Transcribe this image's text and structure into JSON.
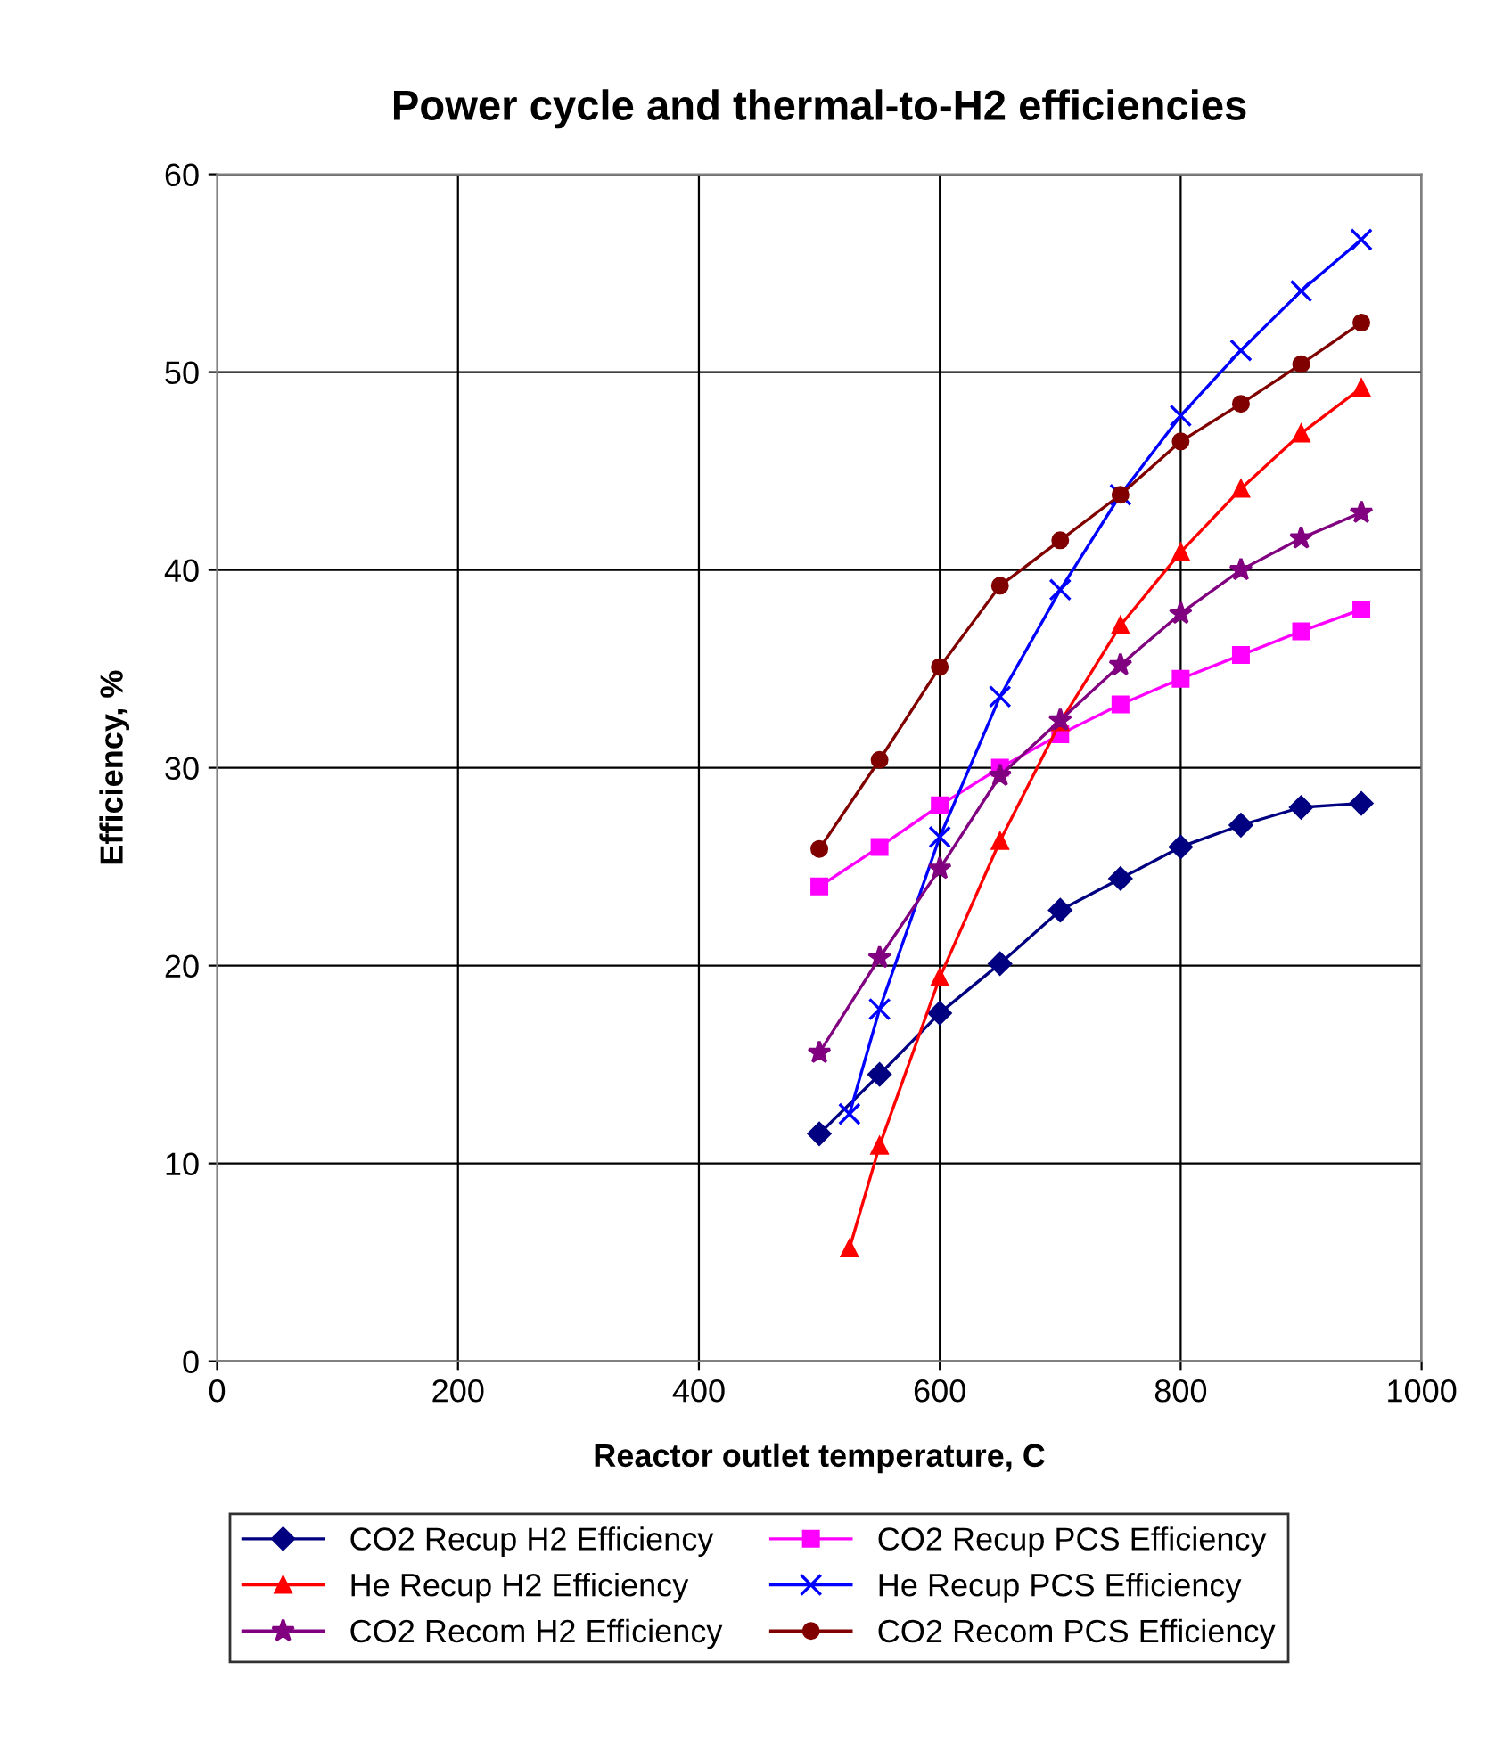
{
  "chart_data": {
    "type": "line",
    "title": "Power cycle and thermal-to-H2 efficiencies",
    "xlabel": "Reactor outlet temperature, C",
    "ylabel": "Efficiency, %",
    "xlim": [
      0,
      1000
    ],
    "xticks": [
      0,
      200,
      400,
      600,
      800,
      1000
    ],
    "ylim": [
      0,
      60
    ],
    "yticks": [
      0,
      10,
      20,
      30,
      40,
      50,
      60
    ],
    "grid": true,
    "legend": "bottom",
    "line_style": "solid",
    "series": [
      {
        "name": "CO2 Recup H2 Efficiency",
        "color": "#000080",
        "marker": "diamond",
        "x": [
          500,
          550,
          600,
          650,
          700,
          750,
          800,
          850,
          900,
          950
        ],
        "values": [
          11.5,
          14.5,
          17.6,
          20.1,
          22.8,
          24.4,
          26.0,
          27.1,
          28.0,
          28.2
        ]
      },
      {
        "name": "CO2 Recup PCS Efficiency",
        "color": "#ff00ff",
        "marker": "square",
        "x": [
          500,
          550,
          600,
          650,
          700,
          750,
          800,
          850,
          900,
          950
        ],
        "values": [
          24.0,
          26.0,
          28.1,
          30.0,
          31.7,
          33.2,
          34.5,
          35.7,
          36.9,
          38.0
        ]
      },
      {
        "name": "He Recup H2 Efficiency",
        "color": "#ff0000",
        "marker": "triangle",
        "x": [
          525,
          550,
          600,
          650,
          700,
          750,
          800,
          850,
          900,
          950
        ],
        "values": [
          5.7,
          10.9,
          19.4,
          26.3,
          32.3,
          37.2,
          40.9,
          44.1,
          46.9,
          49.2
        ]
      },
      {
        "name": "He Recup PCS Efficiency",
        "color": "#0000ff",
        "marker": "cross",
        "x": [
          525,
          550,
          600,
          650,
          700,
          750,
          800,
          850,
          900,
          950
        ],
        "values": [
          12.5,
          17.8,
          26.5,
          33.6,
          39.0,
          43.8,
          47.8,
          51.1,
          54.1,
          56.7
        ]
      },
      {
        "name": "CO2 Recom H2 Efficiency",
        "color": "#800080",
        "marker": "star",
        "x": [
          500,
          550,
          600,
          650,
          700,
          750,
          800,
          850,
          900,
          950
        ],
        "values": [
          15.6,
          20.4,
          24.9,
          29.6,
          32.4,
          35.2,
          37.8,
          40.0,
          41.6,
          42.9
        ]
      },
      {
        "name": "CO2 Recom PCS Efficiency",
        "color": "#800000",
        "marker": "circle",
        "x": [
          500,
          550,
          600,
          650,
          700,
          750,
          800,
          850,
          900,
          950
        ],
        "values": [
          25.9,
          30.4,
          35.1,
          39.2,
          41.5,
          43.8,
          46.5,
          48.4,
          50.4,
          52.5
        ]
      }
    ]
  }
}
